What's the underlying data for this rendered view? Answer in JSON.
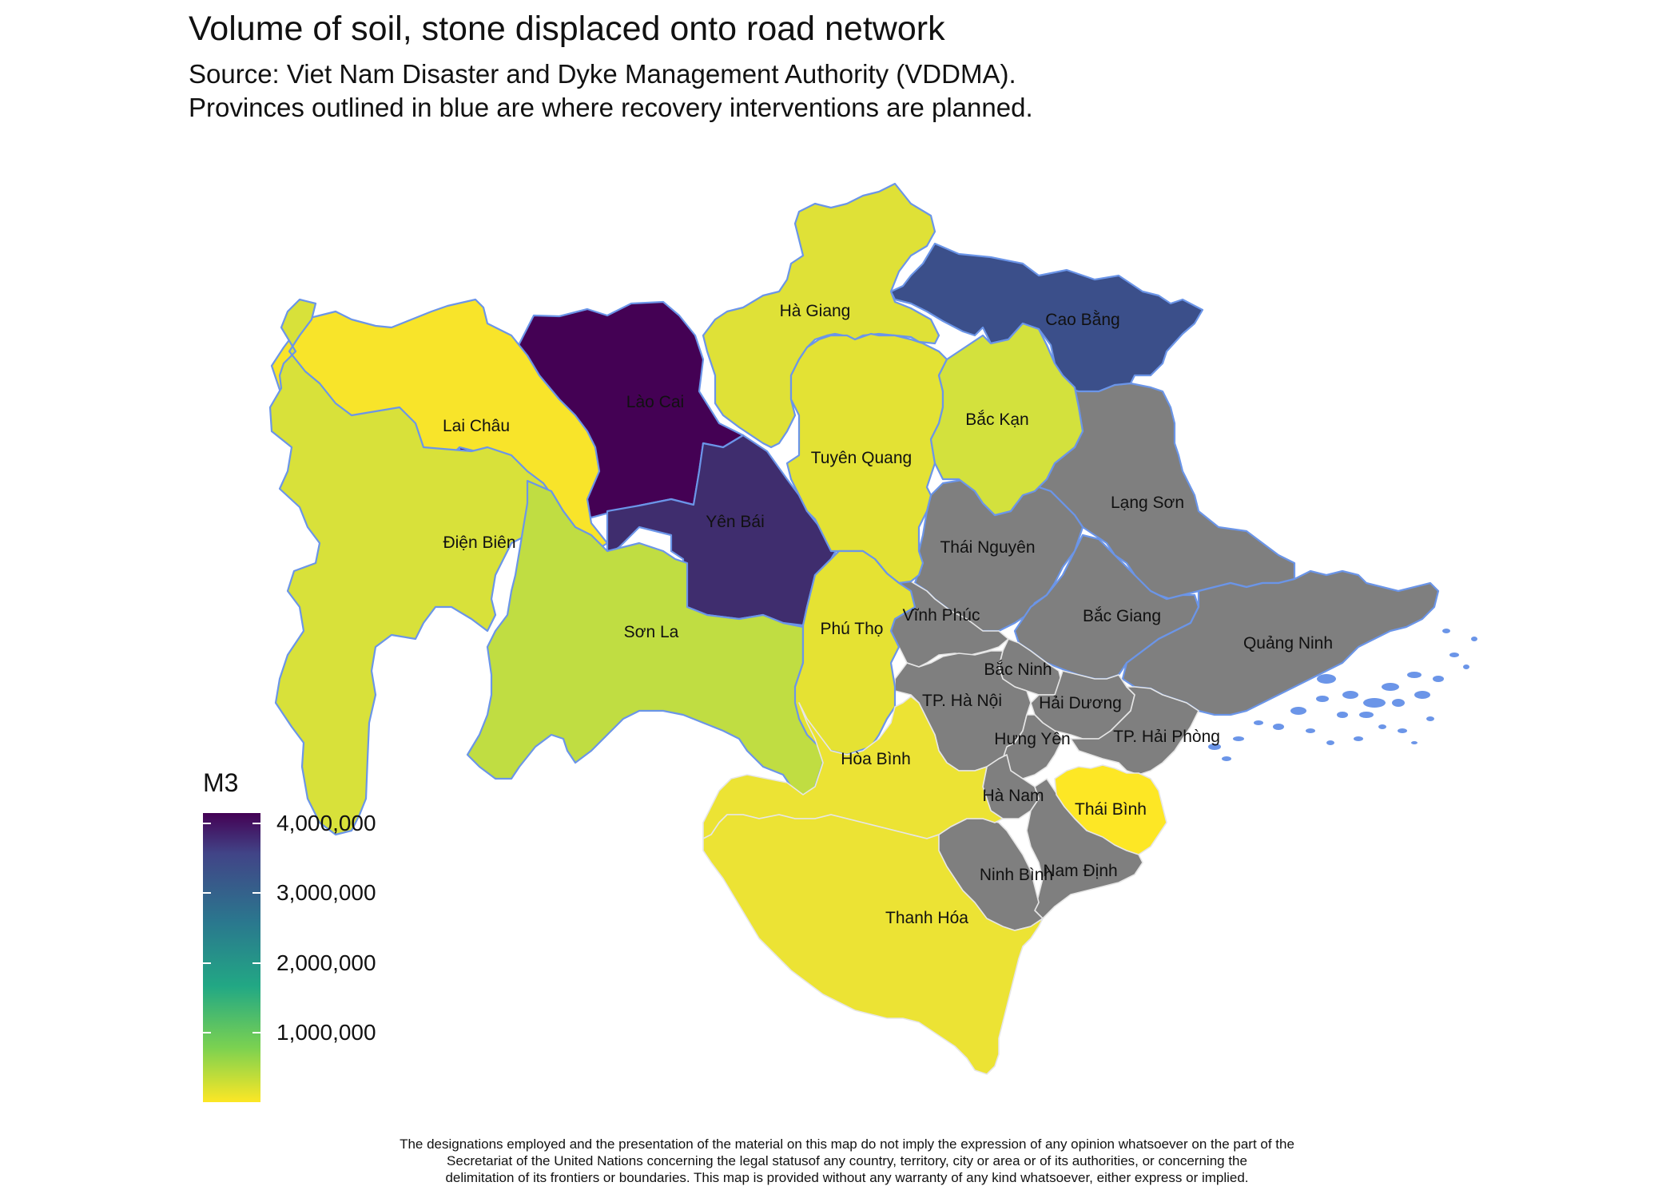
{
  "title": "Volume of soil, stone displaced onto road network",
  "subtitle_line1": "Source: Viet Nam Disaster and Dyke Management Authority (VDDMA).",
  "subtitle_line2": "Provinces outlined in blue are where recovery interventions are planned.",
  "legend": {
    "title": "M3",
    "ticks": [
      {
        "value": 4000000,
        "label": "4,000,000"
      },
      {
        "value": 3000000,
        "label": "3,000,000"
      },
      {
        "value": 2000000,
        "label": "2,000,000"
      },
      {
        "value": 1000000,
        "label": "1,000,000"
      }
    ],
    "range": [
      0,
      4150000
    ],
    "colormap": "viridis (reversed)"
  },
  "colors": {
    "no_data": "#7f7f7f",
    "planned_outline": "#6b95e8",
    "other_outline": "#e6e6e6",
    "viridis_dark": "#440154",
    "viridis_light": "#fde725"
  },
  "provinces": [
    {
      "name": "Lào Cai",
      "planned": true,
      "fill": "#440154"
    },
    {
      "name": "Yên Bái",
      "planned": true,
      "fill": "#3f2d6e"
    },
    {
      "name": "Cao Bằng",
      "planned": true,
      "fill": "#3b4f8a"
    },
    {
      "name": "Lai Châu",
      "planned": true,
      "fill": "#f8e42a"
    },
    {
      "name": "Điện Biên",
      "planned": true,
      "fill": "#d8e13a"
    },
    {
      "name": "Sơn La",
      "planned": true,
      "fill": "#c0dd42"
    },
    {
      "name": "Hà Giang",
      "planned": true,
      "fill": "#dfe137"
    },
    {
      "name": "Tuyên Quang",
      "planned": true,
      "fill": "#e3e234"
    },
    {
      "name": "Bắc Kạn",
      "planned": true,
      "fill": "#d3e13d"
    },
    {
      "name": "Phú Thọ",
      "planned": true,
      "fill": "#e5e233"
    },
    {
      "name": "Lạng Sơn",
      "planned": true,
      "fill": "#7f7f7f"
    },
    {
      "name": "Thái Nguyên",
      "planned": true,
      "fill": "#7f7f7f"
    },
    {
      "name": "Bắc Giang",
      "planned": true,
      "fill": "#7f7f7f"
    },
    {
      "name": "Quảng Ninh",
      "planned": true,
      "fill": "#7f7f7f"
    },
    {
      "name": "Vĩnh Phúc",
      "planned": false,
      "fill": "#7f7f7f"
    },
    {
      "name": "Bắc Ninh",
      "planned": false,
      "fill": "#7f7f7f"
    },
    {
      "name": "TP. Hà Nội",
      "planned": false,
      "fill": "#7f7f7f"
    },
    {
      "name": "Hải Dương",
      "planned": false,
      "fill": "#7f7f7f"
    },
    {
      "name": "Hưng Yên",
      "planned": false,
      "fill": "#7f7f7f"
    },
    {
      "name": "TP. Hải Phòng",
      "planned": false,
      "fill": "#7f7f7f"
    },
    {
      "name": "Hà Nam",
      "planned": false,
      "fill": "#7f7f7f"
    },
    {
      "name": "Nam Định",
      "planned": false,
      "fill": "#7f7f7f"
    },
    {
      "name": "Ninh Bình",
      "planned": false,
      "fill": "#7f7f7f"
    },
    {
      "name": "Thái Bình",
      "planned": false,
      "fill": "#fde725"
    },
    {
      "name": "Hòa Bình",
      "planned": false,
      "fill": "#ece334"
    },
    {
      "name": "Thanh Hóa",
      "planned": false,
      "fill": "#ece334"
    }
  ],
  "disclaimer": [
    "The designations employed and the presentation of the material on this map do not imply the expression of any opinion whatsoever on the part of the",
    "Secretariat of the United Nations concerning the legal statusof any country, territory, city or area or of its authorities, or concerning the",
    "delimitation of its frontiers or boundaries. This map is provided without any warranty of any kind whatsoever, either express or implied."
  ]
}
